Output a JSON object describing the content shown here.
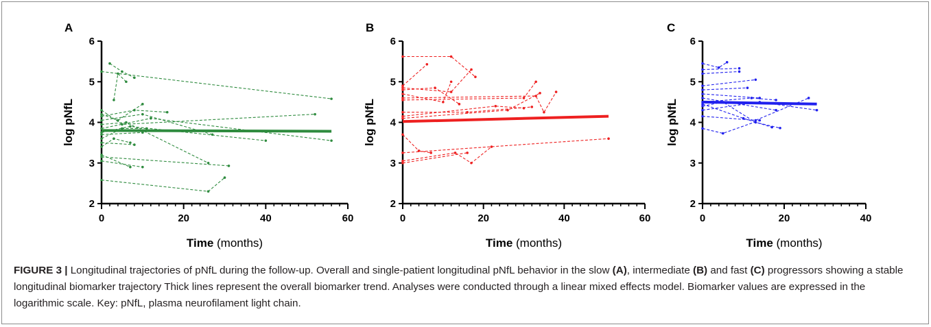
{
  "chart_data": [
    {
      "type": "line",
      "panel": "A",
      "xlabel_bold": "Time",
      "xlabel_rest": " (months)",
      "ylabel": "log pNfL",
      "xlim": [
        0,
        60
      ],
      "ylim": [
        2,
        6
      ],
      "xticks": [
        "0",
        "20",
        "40",
        "60"
      ],
      "yticks": [
        "2",
        "3",
        "4",
        "5",
        "6"
      ],
      "color": "#2e8b3e",
      "trend": {
        "x": [
          0,
          56
        ],
        "y": [
          3.8,
          3.78
        ]
      },
      "series": [
        {
          "x": [
            0,
            56
          ],
          "y": [
            5.25,
            4.58
          ]
        },
        {
          "x": [
            2,
            5,
            8
          ],
          "y": [
            5.45,
            5.25,
            5.1
          ]
        },
        {
          "x": [
            3,
            4,
            6
          ],
          "y": [
            4.55,
            5.2,
            5.0
          ]
        },
        {
          "x": [
            0,
            5,
            52
          ],
          "y": [
            4.3,
            3.95,
            4.2
          ]
        },
        {
          "x": [
            0,
            4,
            10
          ],
          "y": [
            4.2,
            4.05,
            4.45
          ]
        },
        {
          "x": [
            0,
            8,
            16
          ],
          "y": [
            4.15,
            4.3,
            4.25
          ]
        },
        {
          "x": [
            0,
            10,
            27
          ],
          "y": [
            4.05,
            4.2,
            3.7
          ]
        },
        {
          "x": [
            0,
            6,
            26
          ],
          "y": [
            3.95,
            4.0,
            3.0
          ]
        },
        {
          "x": [
            0,
            12,
            56
          ],
          "y": [
            3.85,
            4.1,
            3.55
          ]
        },
        {
          "x": [
            0,
            7,
            40
          ],
          "y": [
            3.75,
            3.9,
            3.55
          ]
        },
        {
          "x": [
            0,
            10
          ],
          "y": [
            3.7,
            3.75
          ]
        },
        {
          "x": [
            0,
            5,
            11
          ],
          "y": [
            3.6,
            3.85,
            3.85
          ]
        },
        {
          "x": [
            0,
            8
          ],
          "y": [
            3.5,
            3.45
          ]
        },
        {
          "x": [
            0,
            3,
            7
          ],
          "y": [
            3.4,
            3.6,
            3.5
          ]
        },
        {
          "x": [
            0,
            31
          ],
          "y": [
            3.15,
            2.93
          ]
        },
        {
          "x": [
            0,
            10
          ],
          "y": [
            3.05,
            2.9
          ]
        },
        {
          "x": [
            0,
            7
          ],
          "y": [
            3.2,
            2.9
          ]
        },
        {
          "x": [
            0,
            26,
            30
          ],
          "y": [
            2.58,
            2.3,
            2.64
          ]
        }
      ]
    },
    {
      "type": "line",
      "panel": "B",
      "xlabel_bold": "Time",
      "xlabel_rest": " (months)",
      "ylabel": "log pNfL",
      "xlim": [
        0,
        60
      ],
      "ylim": [
        2,
        6
      ],
      "xticks": [
        "0",
        "20",
        "40",
        "60"
      ],
      "yticks": [
        "2",
        "3",
        "4",
        "5",
        "6"
      ],
      "color": "#ee2020",
      "trend": {
        "x": [
          0,
          51
        ],
        "y": [
          4.02,
          4.15
        ]
      },
      "series": [
        {
          "x": [
            0,
            12,
            18
          ],
          "y": [
            5.62,
            5.62,
            5.12
          ]
        },
        {
          "x": [
            0,
            6
          ],
          "y": [
            4.9,
            5.43
          ]
        },
        {
          "x": [
            0,
            12,
            17
          ],
          "y": [
            4.85,
            4.75,
            5.3
          ]
        },
        {
          "x": [
            0,
            8,
            14
          ],
          "y": [
            4.8,
            4.85,
            4.45
          ]
        },
        {
          "x": [
            0,
            10,
            12
          ],
          "y": [
            4.7,
            4.5,
            5.0
          ]
        },
        {
          "x": [
            0,
            33,
            35,
            38
          ],
          "y": [
            4.6,
            4.65,
            4.25,
            4.75
          ]
        },
        {
          "x": [
            0,
            30,
            33
          ],
          "y": [
            4.55,
            4.6,
            5.0
          ]
        },
        {
          "x": [
            0,
            16,
            32
          ],
          "y": [
            4.25,
            4.25,
            4.38
          ]
        },
        {
          "x": [
            0,
            23,
            30
          ],
          "y": [
            4.15,
            4.4,
            4.35
          ]
        },
        {
          "x": [
            0,
            26,
            34
          ],
          "y": [
            4.1,
            4.3,
            4.72
          ]
        },
        {
          "x": [
            0,
            51
          ],
          "y": [
            3.25,
            3.6
          ]
        },
        {
          "x": [
            0,
            4,
            7
          ],
          "y": [
            3.7,
            3.3,
            3.25
          ]
        },
        {
          "x": [
            0,
            13,
            17,
            22
          ],
          "y": [
            3.05,
            3.25,
            3.0,
            3.4
          ]
        },
        {
          "x": [
            0,
            16
          ],
          "y": [
            3.0,
            3.25
          ]
        }
      ]
    },
    {
      "type": "line",
      "panel": "C",
      "xlabel_bold": "Time",
      "xlabel_rest": " (months)",
      "ylabel": "log pNfL",
      "xlim": [
        0,
        40
      ],
      "ylim": [
        2,
        6
      ],
      "xticks": [
        "0",
        "20",
        "40"
      ],
      "yticks": [
        "2",
        "3",
        "4",
        "5",
        "6"
      ],
      "color": "#2020ee",
      "trend": {
        "x": [
          0,
          28
        ],
        "y": [
          4.5,
          4.45
        ]
      },
      "series": [
        {
          "x": [
            0,
            4,
            6
          ],
          "y": [
            5.45,
            5.35,
            5.48
          ]
        },
        {
          "x": [
            0,
            9
          ],
          "y": [
            5.3,
            5.33
          ]
        },
        {
          "x": [
            0,
            9
          ],
          "y": [
            5.2,
            5.25
          ]
        },
        {
          "x": [
            0,
            13
          ],
          "y": [
            4.9,
            5.05
          ]
        },
        {
          "x": [
            0,
            11
          ],
          "y": [
            4.8,
            4.85
          ]
        },
        {
          "x": [
            0,
            14
          ],
          "y": [
            4.7,
            4.6
          ]
        },
        {
          "x": [
            0,
            18
          ],
          "y": [
            4.6,
            4.3
          ]
        },
        {
          "x": [
            0,
            12,
            18
          ],
          "y": [
            4.5,
            4.6,
            4.55
          ]
        },
        {
          "x": [
            0,
            5,
            13,
            19
          ],
          "y": [
            4.4,
            4.5,
            4.0,
            3.86
          ]
        },
        {
          "x": [
            0,
            14,
            28
          ],
          "y": [
            4.3,
            4.5,
            4.3
          ]
        },
        {
          "x": [
            0,
            13,
            26
          ],
          "y": [
            4.15,
            4.05,
            4.6
          ]
        },
        {
          "x": [
            0,
            5,
            14
          ],
          "y": [
            3.85,
            3.73,
            4.05
          ]
        },
        {
          "x": [
            0,
            10,
            17
          ],
          "y": [
            4.45,
            4.1,
            3.88
          ]
        }
      ]
    }
  ],
  "caption": {
    "fig_label": "FIGURE 3 |",
    "t1": " Longitudinal trajectories of pNfL during the follow-up. Overall and single-patient longitudinal pNfL behavior in the slow ",
    "refA": "(A)",
    "t2": ", intermediate ",
    "refB": "(B)",
    "t3": " and fast ",
    "refC": "(C)",
    "t4": " progressors showing a stable longitudinal biomarker trajectory Thick lines represent the overall biomarker trend. Analyses were conducted through a linear mixed effects model. Biomarker values are expressed in the logarithmic scale. Key: pNfL, plasma neurofilament light chain."
  }
}
